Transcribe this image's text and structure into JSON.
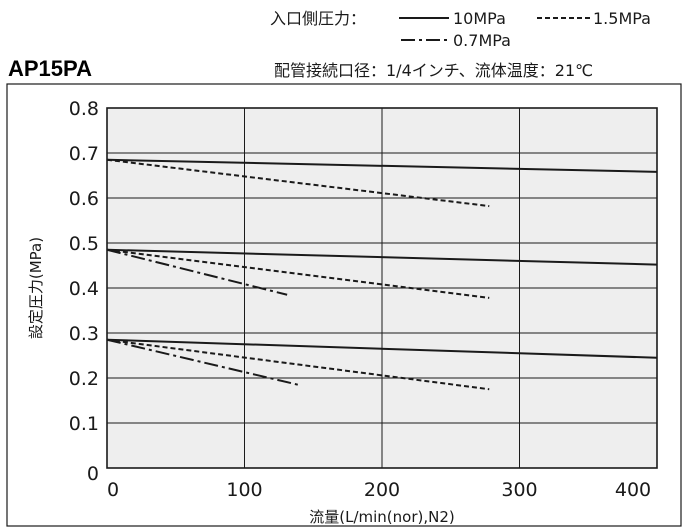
{
  "legend": {
    "prefix": "入口側圧力：",
    "items": [
      {
        "label": "10MPa",
        "style": "solid"
      },
      {
        "label": "1.5MPa",
        "style": "dashed"
      },
      {
        "label": "0.7MPa",
        "style": "dashdot"
      }
    ],
    "conditions": "配管接続口径：1/4インチ、流体温度：21℃"
  },
  "chart_data": {
    "type": "line",
    "title": "AP15PA",
    "xlabel": "流量(L/min(nor),N2)",
    "ylabel": "設定圧力(MPa)",
    "xlim": [
      0,
      400
    ],
    "ylim": [
      0,
      0.8
    ],
    "xticks": [
      0,
      100,
      200,
      300,
      400
    ],
    "yticks": [
      0,
      0.1,
      0.2,
      0.3,
      0.4,
      0.5,
      0.6,
      0.7,
      0.8
    ],
    "xtick_labels": [
      "0",
      "100",
      "200",
      "300",
      "400"
    ],
    "ytick_labels": [
      "0",
      "0.1",
      "0.2",
      "0.3",
      "0.4",
      "0.5",
      "0.6",
      "0.7",
      "0.8"
    ],
    "grid": true,
    "legend_position": "top-right",
    "series": [
      {
        "inlet": "10MPa",
        "style": "solid",
        "x": [
          0,
          400
        ],
        "y": [
          0.685,
          0.658
        ]
      },
      {
        "inlet": "1.5MPa",
        "style": "dashed",
        "x": [
          0,
          278
        ],
        "y": [
          0.685,
          0.582
        ]
      },
      {
        "inlet": "10MPa",
        "style": "solid",
        "x": [
          0,
          400
        ],
        "y": [
          0.485,
          0.452
        ]
      },
      {
        "inlet": "1.5MPa",
        "style": "dashed",
        "x": [
          0,
          278
        ],
        "y": [
          0.485,
          0.378
        ]
      },
      {
        "inlet": "0.7MPa",
        "style": "dashdot",
        "x": [
          0,
          131
        ],
        "y": [
          0.485,
          0.385
        ]
      },
      {
        "inlet": "10MPa",
        "style": "solid",
        "x": [
          0,
          400
        ],
        "y": [
          0.285,
          0.245
        ]
      },
      {
        "inlet": "1.5MPa",
        "style": "dashed",
        "x": [
          0,
          278
        ],
        "y": [
          0.285,
          0.175
        ]
      },
      {
        "inlet": "0.7MPa",
        "style": "dashdot",
        "x": [
          0,
          139
        ],
        "y": [
          0.285,
          0.185
        ]
      }
    ]
  }
}
